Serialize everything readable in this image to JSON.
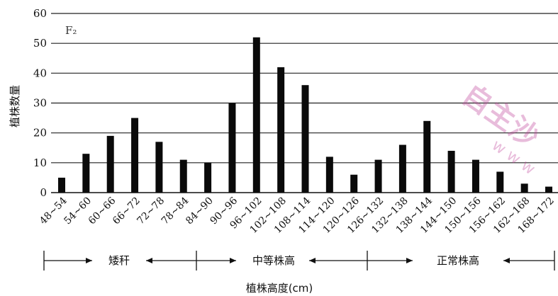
{
  "chart_data": {
    "type": "bar",
    "title": "F₂",
    "ylabel": "植株数量",
    "xlabel": "植株高度(cm)",
    "ylim": [
      0,
      60
    ],
    "yticks": [
      0,
      10,
      20,
      30,
      40,
      50,
      60
    ],
    "grid": "horizontal",
    "categories": [
      "48~54",
      "54~60",
      "60~66",
      "66~72",
      "72~78",
      "78~84",
      "84~90",
      "90~96",
      "96~102",
      "102~108",
      "108~114",
      "114~120",
      "120~126",
      "126~132",
      "132~138",
      "138~144",
      "144~150",
      "150~156",
      "156~162",
      "162~168",
      "168~172"
    ],
    "values": [
      5,
      13,
      19,
      25,
      17,
      11,
      10,
      30,
      52,
      42,
      36,
      12,
      6,
      11,
      16,
      24,
      14,
      11,
      7,
      3,
      2
    ],
    "groups": [
      {
        "label": "矮秆"
      },
      {
        "label": "中等株高"
      },
      {
        "label": "正常株高"
      }
    ]
  },
  "watermark": {
    "text": "自主沙",
    "letters": "w w w",
    "color": "#c0429a"
  }
}
